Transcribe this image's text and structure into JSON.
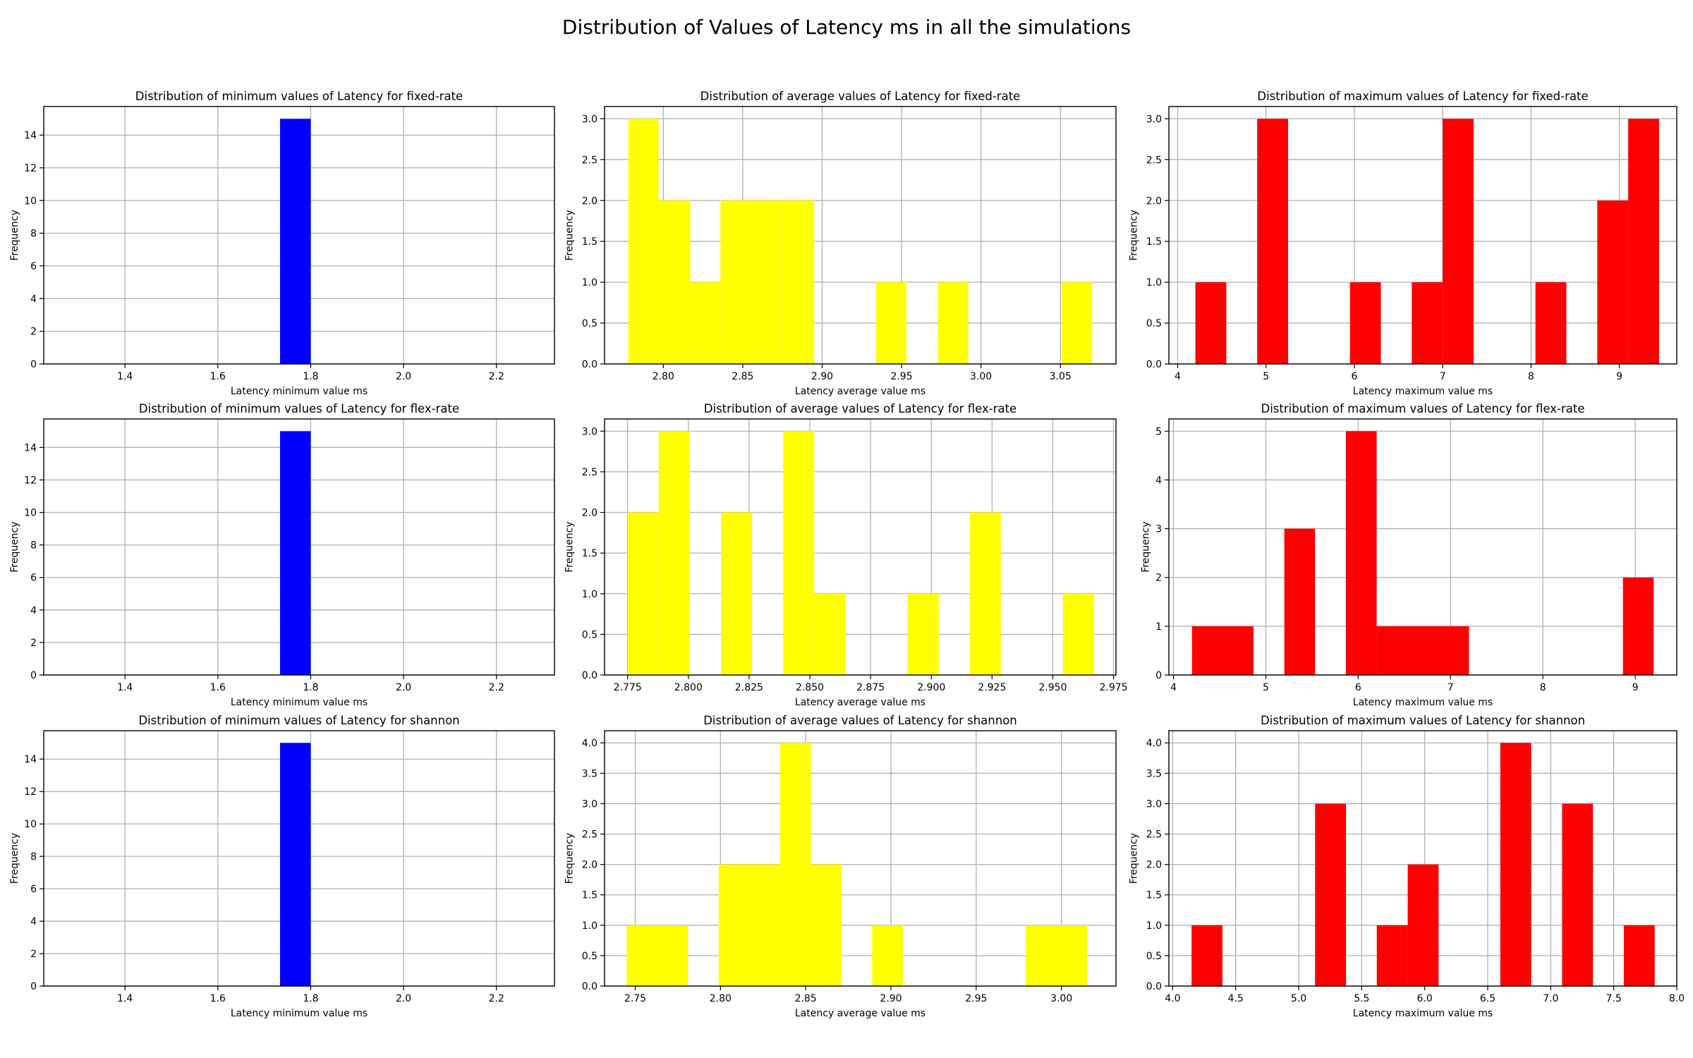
{
  "title": "Distribution of Values of Latency ms in all the simulations",
  "colors": {
    "min": "#0000ff",
    "avg": "#ffff00",
    "max": "#ff0000",
    "grid": "#b0b0b0"
  },
  "chart_data": [
    {
      "type": "bar",
      "title": "Distribution of minimum values of Latency for fixed-rate",
      "xlabel": "Latency minimum value ms",
      "ylabel": "Frequency",
      "xlim": [
        1.225,
        2.325
      ],
      "ylim": [
        0,
        15.75
      ],
      "xticks": [
        "1.4",
        "1.6",
        "1.8",
        "2.0",
        "2.2"
      ],
      "yticks": [
        "0",
        "2",
        "4",
        "6",
        "8",
        "10",
        "12",
        "14"
      ],
      "grid": true,
      "color": "blue",
      "bars": [
        {
          "x0": 1.734,
          "x1": 1.8,
          "count": 15
        }
      ]
    },
    {
      "type": "bar",
      "title": "Distribution of average values of Latency for fixed-rate",
      "xlabel": "Latency average value ms",
      "ylabel": "Frequency",
      "xlim": [
        2.763,
        3.085
      ],
      "ylim": [
        0,
        3.15
      ],
      "xticks": [
        "2.80",
        "2.85",
        "2.90",
        "2.95",
        "3.00",
        "3.05"
      ],
      "yticks": [
        "0.0",
        "0.5",
        "1.0",
        "1.5",
        "2.0",
        "2.5",
        "3.0"
      ],
      "grid": true,
      "color": "yellow",
      "bars": [
        {
          "x0": 2.778,
          "x1": 2.797,
          "count": 3
        },
        {
          "x0": 2.797,
          "x1": 2.817,
          "count": 2
        },
        {
          "x0": 2.817,
          "x1": 2.836,
          "count": 1
        },
        {
          "x0": 2.836,
          "x1": 2.856,
          "count": 2
        },
        {
          "x0": 2.856,
          "x1": 2.875,
          "count": 2
        },
        {
          "x0": 2.875,
          "x1": 2.895,
          "count": 2
        },
        {
          "x0": 2.934,
          "x1": 2.953,
          "count": 1
        },
        {
          "x0": 2.973,
          "x1": 2.992,
          "count": 1
        },
        {
          "x0": 3.051,
          "x1": 3.07,
          "count": 1
        }
      ]
    },
    {
      "type": "bar",
      "title": "Distribution of maximum values of Latency  for fixed-rate",
      "xlabel": "Latency maximum value ms",
      "ylabel": "Frequency",
      "xlim": [
        3.9,
        9.65
      ],
      "ylim": [
        0,
        3.15
      ],
      "xticks": [
        "4",
        "5",
        "6",
        "7",
        "8",
        "9"
      ],
      "yticks": [
        "0.0",
        "0.5",
        "1.0",
        "1.5",
        "2.0",
        "2.5",
        "3.0"
      ],
      "grid": true,
      "color": "red",
      "bars": [
        {
          "x0": 4.2,
          "x1": 4.55,
          "count": 1
        },
        {
          "x0": 4.9,
          "x1": 5.25,
          "count": 3
        },
        {
          "x0": 5.95,
          "x1": 6.3,
          "count": 1
        },
        {
          "x0": 6.65,
          "x1": 7.0,
          "count": 1
        },
        {
          "x0": 7.0,
          "x1": 7.35,
          "count": 3
        },
        {
          "x0": 8.05,
          "x1": 8.4,
          "count": 1
        },
        {
          "x0": 8.75,
          "x1": 9.1,
          "count": 2
        },
        {
          "x0": 9.1,
          "x1": 9.45,
          "count": 3
        }
      ]
    },
    {
      "type": "bar",
      "title": "Distribution of minimum values of Latency for flex-rate",
      "xlabel": "Latency minimum value ms",
      "ylabel": "Frequency",
      "xlim": [
        1.225,
        2.325
      ],
      "ylim": [
        0,
        15.75
      ],
      "xticks": [
        "1.4",
        "1.6",
        "1.8",
        "2.0",
        "2.2"
      ],
      "yticks": [
        "0",
        "2",
        "4",
        "6",
        "8",
        "10",
        "12",
        "14"
      ],
      "grid": true,
      "color": "blue",
      "bars": [
        {
          "x0": 1.734,
          "x1": 1.8,
          "count": 15
        }
      ]
    },
    {
      "type": "bar",
      "title": "Distribution of average values of Latency for flex-rate",
      "xlabel": "Latency average value ms",
      "ylabel": "Frequency",
      "xlim": [
        2.7655,
        2.976
      ],
      "ylim": [
        0,
        3.15
      ],
      "xticks": [
        "2.775",
        "2.800",
        "2.825",
        "2.850",
        "2.875",
        "2.900",
        "2.925",
        "2.950",
        "2.975"
      ],
      "yticks": [
        "0.0",
        "0.5",
        "1.0",
        "1.5",
        "2.0",
        "2.5",
        "3.0"
      ],
      "grid": true,
      "color": "yellow",
      "bars": [
        {
          "x0": 2.775,
          "x1": 2.7878,
          "count": 2
        },
        {
          "x0": 2.7878,
          "x1": 2.8006,
          "count": 3
        },
        {
          "x0": 2.8134,
          "x1": 2.8262,
          "count": 2
        },
        {
          "x0": 2.839,
          "x1": 2.8518,
          "count": 3
        },
        {
          "x0": 2.8518,
          "x1": 2.8646,
          "count": 1
        },
        {
          "x0": 2.8902,
          "x1": 2.903,
          "count": 1
        },
        {
          "x0": 2.9158,
          "x1": 2.9286,
          "count": 2
        },
        {
          "x0": 2.9542,
          "x1": 2.967,
          "count": 1
        }
      ]
    },
    {
      "type": "bar",
      "title": "Distribution of maximum values of Latency  for flex-rate",
      "xlabel": "Latency maximum value ms",
      "ylabel": "Frequency",
      "xlim": [
        3.95,
        9.45
      ],
      "ylim": [
        0,
        5.25
      ],
      "xticks": [
        "4",
        "5",
        "6",
        "7",
        "8",
        "9"
      ],
      "yticks": [
        "0",
        "1",
        "2",
        "3",
        "4",
        "5"
      ],
      "grid": true,
      "color": "red",
      "bars": [
        {
          "x0": 4.2,
          "x1": 4.867,
          "count": 1
        },
        {
          "x0": 5.2,
          "x1": 5.533,
          "count": 3
        },
        {
          "x0": 5.867,
          "x1": 6.2,
          "count": 5
        },
        {
          "x0": 6.2,
          "x1": 7.2,
          "count": 1
        },
        {
          "x0": 8.867,
          "x1": 9.2,
          "count": 2
        }
      ]
    },
    {
      "type": "bar",
      "title": "Distribution of minimum values of Latency for shannon",
      "xlabel": "Latency minimum value ms",
      "ylabel": "Frequency",
      "xlim": [
        1.225,
        2.325
      ],
      "ylim": [
        0,
        15.75
      ],
      "xticks": [
        "1.4",
        "1.6",
        "1.8",
        "2.0",
        "2.2"
      ],
      "yticks": [
        "0",
        "2",
        "4",
        "6",
        "8",
        "10",
        "12",
        "14"
      ],
      "grid": true,
      "color": "blue",
      "bars": [
        {
          "x0": 1.734,
          "x1": 1.8,
          "count": 15
        }
      ]
    },
    {
      "type": "bar",
      "title": "Distribution of average values of Latency for shannon",
      "xlabel": "Latency average value ms",
      "ylabel": "Frequency",
      "xlim": [
        2.732,
        3.032
      ],
      "ylim": [
        0,
        4.2
      ],
      "xticks": [
        "2.75",
        "2.80",
        "2.85",
        "2.90",
        "2.95",
        "3.00"
      ],
      "yticks": [
        "0.0",
        "0.5",
        "1.0",
        "1.5",
        "2.0",
        "2.5",
        "3.0",
        "3.5",
        "4.0"
      ],
      "grid": true,
      "color": "yellow",
      "bars": [
        {
          "x0": 2.745,
          "x1": 2.781,
          "count": 1
        },
        {
          "x0": 2.799,
          "x1": 2.835,
          "count": 2
        },
        {
          "x0": 2.835,
          "x1": 2.853,
          "count": 4
        },
        {
          "x0": 2.853,
          "x1": 2.871,
          "count": 2
        },
        {
          "x0": 2.889,
          "x1": 2.907,
          "count": 1
        },
        {
          "x0": 2.979,
          "x1": 3.015,
          "count": 1
        }
      ]
    },
    {
      "type": "bar",
      "title": "Distribution of maximum values of Latency  for shannon",
      "xlabel": "Latency maximum value ms",
      "ylabel": "Frequency",
      "xlim": [
        3.97,
        8.0
      ],
      "ylim": [
        0,
        4.2
      ],
      "xticks": [
        "4.0",
        "4.5",
        "5.0",
        "5.5",
        "6.0",
        "6.5",
        "7.0",
        "7.5",
        "8.0"
      ],
      "yticks": [
        "0.0",
        "0.5",
        "1.0",
        "1.5",
        "2.0",
        "2.5",
        "3.0",
        "3.5",
        "4.0"
      ],
      "grid": true,
      "color": "red",
      "bars": [
        {
          "x0": 4.15,
          "x1": 4.395,
          "count": 1
        },
        {
          "x0": 5.13,
          "x1": 5.375,
          "count": 3
        },
        {
          "x0": 5.62,
          "x1": 5.865,
          "count": 1
        },
        {
          "x0": 5.865,
          "x1": 6.11,
          "count": 2
        },
        {
          "x0": 6.6,
          "x1": 6.845,
          "count": 4
        },
        {
          "x0": 7.09,
          "x1": 7.335,
          "count": 3
        },
        {
          "x0": 7.58,
          "x1": 7.825,
          "count": 1
        }
      ]
    }
  ]
}
